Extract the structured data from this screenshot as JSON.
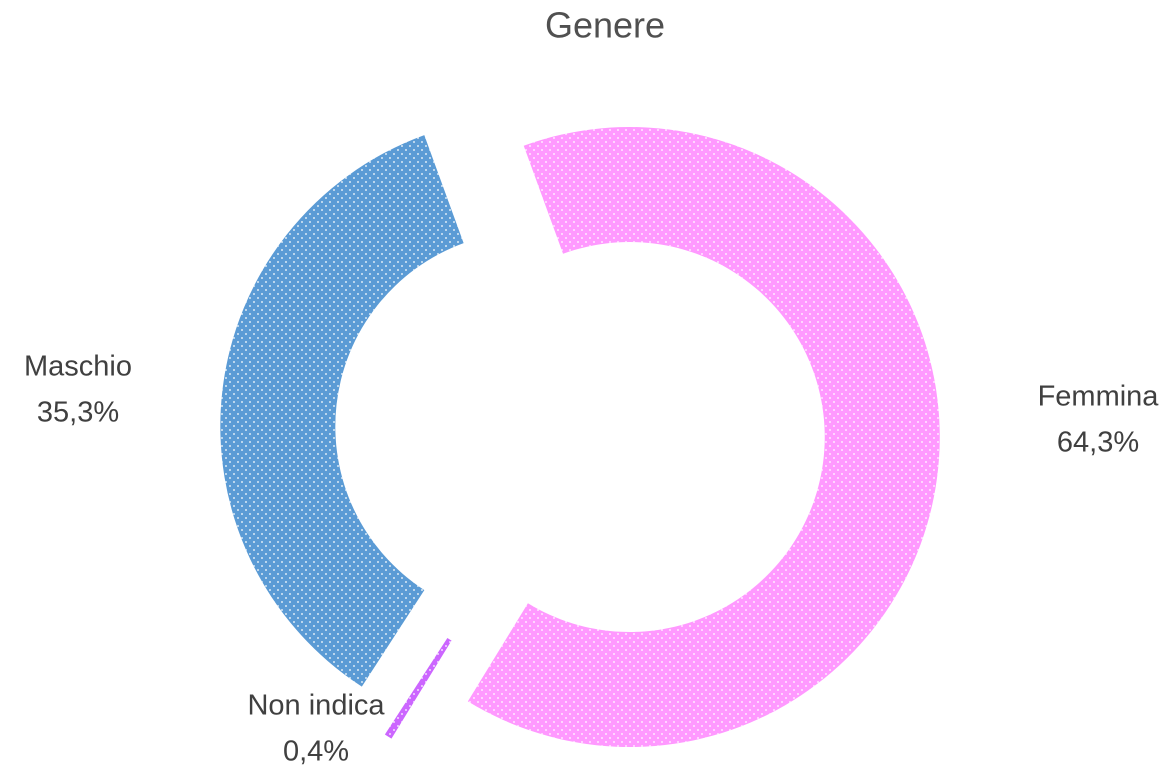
{
  "chart_data": {
    "type": "doughnut",
    "title": "Genere",
    "categories": [
      "Femmina",
      "Non indica",
      "Maschio"
    ],
    "values": [
      64.3,
      0.4,
      35.3
    ],
    "value_labels": [
      "64,3%",
      "0,4%",
      "35,3%"
    ],
    "colors": [
      "#ff99ff",
      "#cc66ff",
      "#5b9bd5"
    ]
  }
}
